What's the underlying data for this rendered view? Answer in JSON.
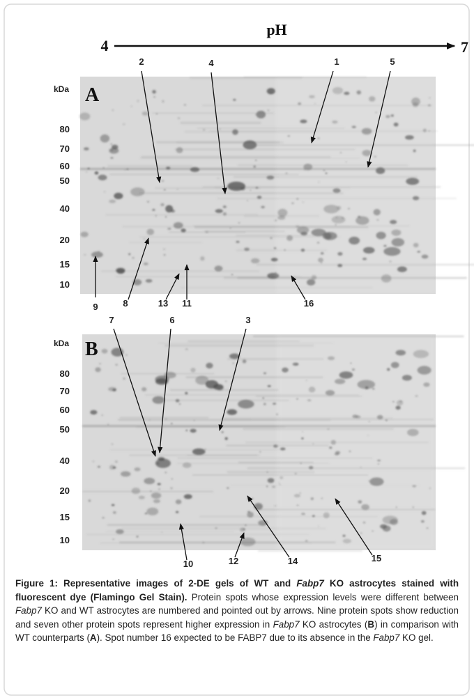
{
  "ph_axis": {
    "start": "4",
    "label": "pH",
    "end": "7"
  },
  "panels": [
    {
      "label": "A",
      "unit": "kDa",
      "mw_labels": [
        "80",
        "70",
        "60",
        "50",
        "40",
        "20",
        "15",
        "10"
      ],
      "spots": [
        "2",
        "4",
        "1",
        "5",
        "9",
        "8",
        "13",
        "11",
        "16"
      ]
    },
    {
      "label": "B",
      "unit": "kDa",
      "mw_labels": [
        "80",
        "70",
        "60",
        "50",
        "40",
        "20",
        "15",
        "10"
      ],
      "spots": [
        "7",
        "6",
        "3",
        "10",
        "12",
        "14",
        "15"
      ]
    }
  ],
  "caption": {
    "segments": [
      {
        "text": "Figure 1: Representative images of 2-DE gels of WT and ",
        "style": "bold"
      },
      {
        "text": "Fabp7",
        "style": "bold-italic"
      },
      {
        "text": " KO astrocytes stained with fluorescent dye (Flamingo Gel Stain).",
        "style": "bold"
      },
      {
        "text": " Protein spots whose expression levels were different between ",
        "style": "plain"
      },
      {
        "text": "Fabp7",
        "style": "italic"
      },
      {
        "text": " KO and WT astrocytes are numbered and pointed out by arrows. Nine protein spots show reduction and seven other protein spots represent higher expression in ",
        "style": "plain"
      },
      {
        "text": "Fabp7",
        "style": "italic"
      },
      {
        "text": " KO astrocytes (",
        "style": "plain"
      },
      {
        "text": "B",
        "style": "bold"
      },
      {
        "text": ") in comparison with WT counterparts (",
        "style": "plain"
      },
      {
        "text": "A",
        "style": "bold"
      },
      {
        "text": "). Spot number 16 expected to be FABP7 due to its absence in the ",
        "style": "plain"
      },
      {
        "text": "Fabp7",
        "style": "italic"
      },
      {
        "text": " KO gel.",
        "style": "plain"
      }
    ]
  }
}
